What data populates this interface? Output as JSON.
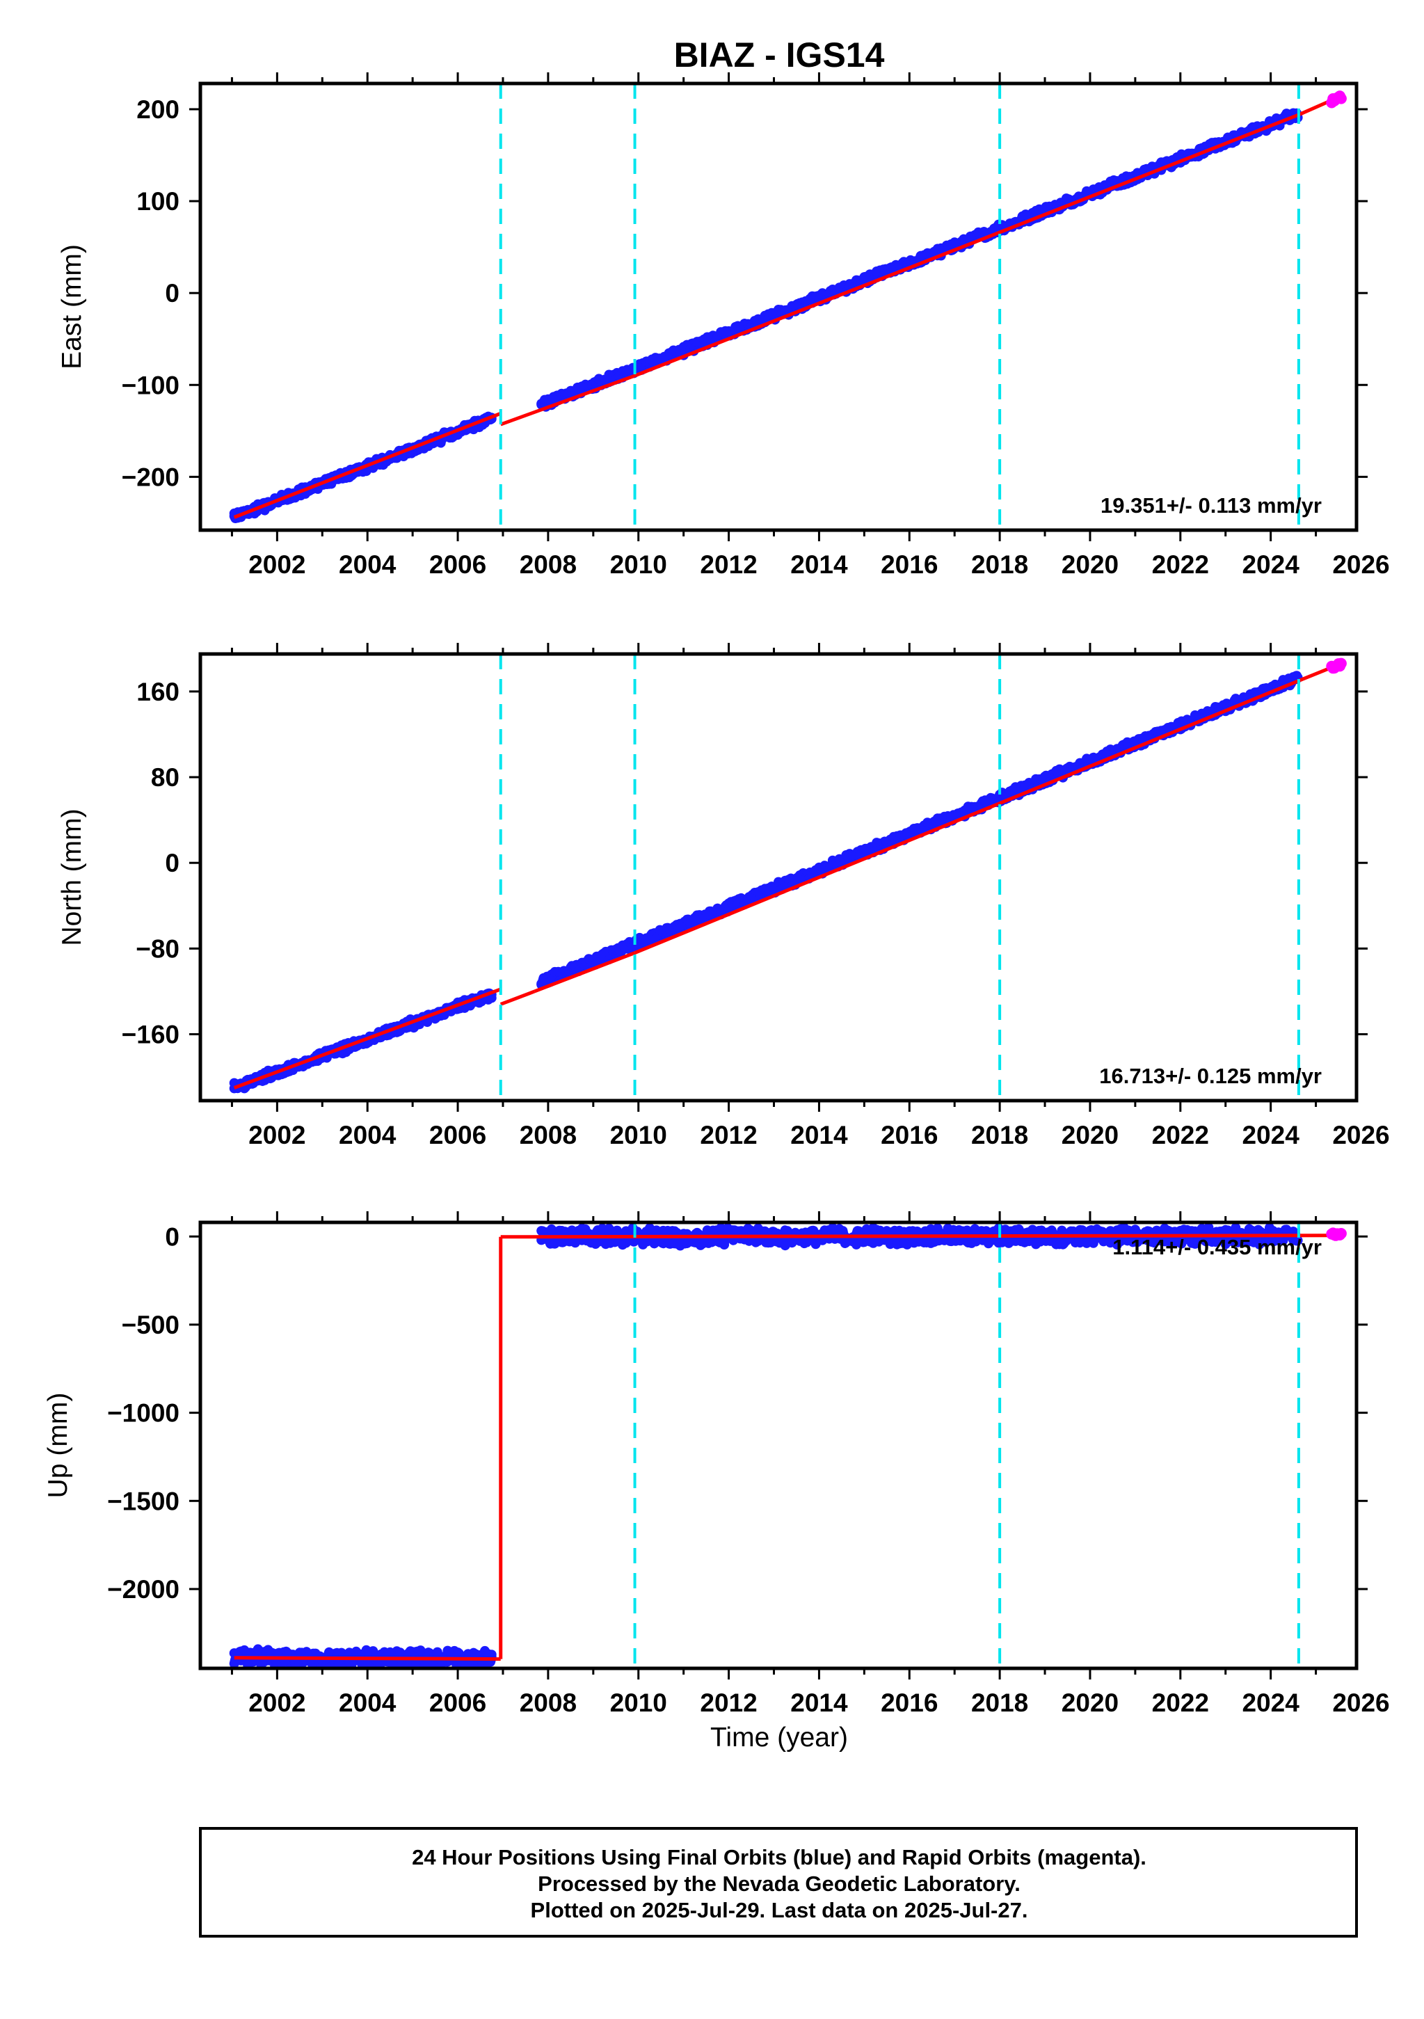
{
  "title": "BIAZ - IGS14",
  "x_label": "Time (year)",
  "colors": {
    "final_orbits": "#1a1aff",
    "rapid_orbits": "#ff00ff",
    "model": "#ff0000",
    "offset_lines": "#00e5ee"
  },
  "footer": {
    "line1": "24 Hour Positions Using Final Orbits (blue) and Rapid Orbits (magenta).",
    "line2": "Processed by the Nevada Geodetic Laboratory.",
    "line3": "Plotted on 2025-Jul-29. Last data on 2025-Jul-27."
  },
  "chart_data": [
    {
      "type": "scatter",
      "component": "East",
      "ylabel": "East (mm)",
      "rate_text": "19.351+/- 0.113 mm/yr",
      "xlim": [
        2000.3,
        2025.9
      ],
      "ylim": [
        -258,
        228
      ],
      "xticks": [
        2002,
        2004,
        2006,
        2008,
        2010,
        2012,
        2014,
        2016,
        2018,
        2020,
        2022,
        2024,
        2026
      ],
      "yticks": [
        -200,
        -100,
        0,
        100,
        200
      ],
      "offset_lines": [
        2006.95,
        2009.92,
        2018.0,
        2024.62
      ],
      "final_segments": [
        {
          "x": [
            2001.05,
            2006.75
          ],
          "y": [
            -244,
            -137
          ]
        },
        {
          "x": [
            2007.85,
            2024.6
          ],
          "y": [
            -122,
            195
          ]
        }
      ],
      "model_segments": [
        {
          "x": [
            2001.05,
            2006.95
          ],
          "y": [
            -244,
            -131
          ]
        },
        {
          "x": [
            2006.95,
            2009.92
          ],
          "y": [
            -143,
            -90
          ]
        },
        {
          "x": [
            2009.92,
            2024.62
          ],
          "y": [
            -90,
            194
          ]
        },
        {
          "x": [
            2024.62,
            2025.5
          ],
          "y": [
            194,
            213
          ]
        }
      ],
      "rapid": {
        "x": [
          2025.35,
          2025.56
        ],
        "y": [
          209,
          213
        ]
      }
    },
    {
      "type": "scatter",
      "component": "North",
      "ylabel": "North (mm)",
      "rate_text": "16.713+/- 0.125 mm/yr",
      "xlim": [
        2000.3,
        2025.9
      ],
      "ylim": [
        -222,
        195
      ],
      "xticks": [
        2002,
        2004,
        2006,
        2008,
        2010,
        2012,
        2014,
        2016,
        2018,
        2020,
        2022,
        2024,
        2026
      ],
      "yticks": [
        -160,
        -80,
        0,
        80,
        160
      ],
      "offset_lines": [
        2006.95,
        2009.92,
        2018.0,
        2024.62
      ],
      "final_segments": [
        {
          "x": [
            2001.05,
            2006.75
          ],
          "y": [
            -210,
            -123
          ]
        },
        {
          "x": [
            2007.85,
            2024.6
          ],
          "y": [
            -111,
            172
          ]
        }
      ],
      "model_segments": [
        {
          "x": [
            2001.05,
            2006.95
          ],
          "y": [
            -210,
            -118
          ]
        },
        {
          "x": [
            2006.95,
            2007.7
          ],
          "y": [
            -132,
            -120
          ]
        },
        {
          "x": [
            2007.7,
            2009.92
          ],
          "y": [
            -120,
            -84
          ]
        },
        {
          "x": [
            2009.92,
            2024.62
          ],
          "y": [
            -84,
            170
          ]
        },
        {
          "x": [
            2024.62,
            2025.5
          ],
          "y": [
            170,
            185
          ]
        }
      ],
      "rapid": {
        "x": [
          2025.35,
          2025.56
        ],
        "y": [
          182,
          185
        ]
      }
    },
    {
      "type": "scatter",
      "component": "Up",
      "ylabel": "Up (mm)",
      "rate_text": "1.114+/- 0.435 mm/yr",
      "xlim": [
        2000.3,
        2025.9
      ],
      "ylim": [
        -2450,
        80
      ],
      "xticks": [
        2002,
        2004,
        2006,
        2008,
        2010,
        2012,
        2014,
        2016,
        2018,
        2020,
        2022,
        2024,
        2026
      ],
      "yticks": [
        -2000,
        -1500,
        -1000,
        -500,
        0
      ],
      "offset_lines": [
        2009.92,
        2018.0,
        2024.62
      ],
      "final_segments": [
        {
          "x": [
            2001.05,
            2006.75
          ],
          "y": [
            -2390,
            -2397
          ]
        },
        {
          "x": [
            2007.85,
            2024.6
          ],
          "y": [
            -3,
            2
          ]
        }
      ],
      "model_segments": [
        {
          "x": [
            2001.05,
            2006.95
          ],
          "y": [
            -2390,
            -2397
          ]
        },
        {
          "x": [
            2006.95,
            2006.95
          ],
          "y": [
            -2397,
            -2
          ]
        },
        {
          "x": [
            2006.95,
            2025.5
          ],
          "y": [
            -2,
            6
          ]
        }
      ],
      "rapid": {
        "x": [
          2025.35,
          2025.56
        ],
        "y": [
          4,
          8
        ]
      }
    }
  ]
}
